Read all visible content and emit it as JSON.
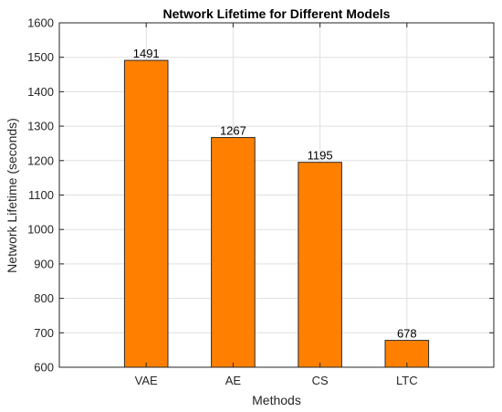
{
  "chart_data": {
    "type": "bar",
    "title": "Network Lifetime for Different Models",
    "xlabel": "Methods",
    "ylabel": "Network Lifetime (seconds)",
    "categories": [
      "VAE",
      "AE",
      "CS",
      "LTC"
    ],
    "values": [
      1491,
      1267,
      1195,
      678
    ],
    "data_labels": [
      "1491",
      "1267",
      "1195",
      "678"
    ],
    "ylim": [
      600,
      1600
    ],
    "yticks": [
      600,
      700,
      800,
      900,
      1000,
      1100,
      1200,
      1300,
      1400,
      1500,
      1600
    ],
    "xlim": [
      0,
      5
    ],
    "grid": true,
    "legend": "none",
    "bar_color": "#ff8000"
  }
}
